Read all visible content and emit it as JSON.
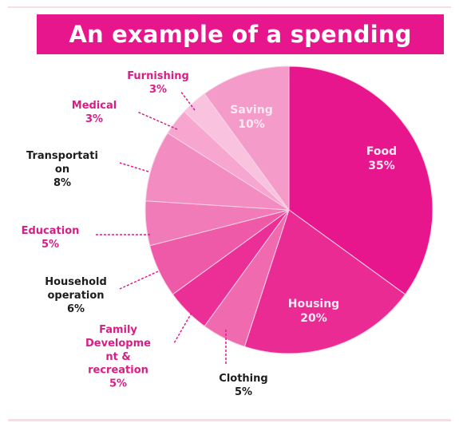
{
  "title": "An example of a spending plan",
  "chart_data": {
    "type": "pie",
    "title": "An example of a spending plan",
    "slices": [
      {
        "label_lines": [
          "Food"
        ],
        "pct_label": "35%",
        "value": 35,
        "color": "#e8168c"
      },
      {
        "label_lines": [
          "Housing"
        ],
        "pct_label": "20%",
        "value": 20,
        "color": "#ea2b93"
      },
      {
        "label_lines": [
          "Clothing"
        ],
        "pct_label": "5%",
        "value": 5,
        "color": "#f06aaf"
      },
      {
        "label_lines": [
          "Family",
          "Developme",
          "nt &",
          "recreation"
        ],
        "pct_label": "5%",
        "value": 5,
        "color": "#ec2f96"
      },
      {
        "label_lines": [
          "Household",
          "operation"
        ],
        "pct_label": "6%",
        "value": 6,
        "color": "#ef5aa8"
      },
      {
        "label_lines": [
          "Education"
        ],
        "pct_label": "5%",
        "value": 5,
        "color": "#f17bb8"
      },
      {
        "label_lines": [
          "Transportati",
          "on"
        ],
        "pct_label": "8%",
        "value": 8,
        "color": "#f38cc1"
      },
      {
        "label_lines": [
          "Medical"
        ],
        "pct_label": "3%",
        "value": 3,
        "color": "#f6a6cf"
      },
      {
        "label_lines": [
          "Furnishing"
        ],
        "pct_label": "3%",
        "value": 3,
        "color": "#f9c2de"
      },
      {
        "label_lines": [
          "Saving"
        ],
        "pct_label": "10%",
        "value": 10,
        "color": "#f49bc9"
      }
    ]
  }
}
